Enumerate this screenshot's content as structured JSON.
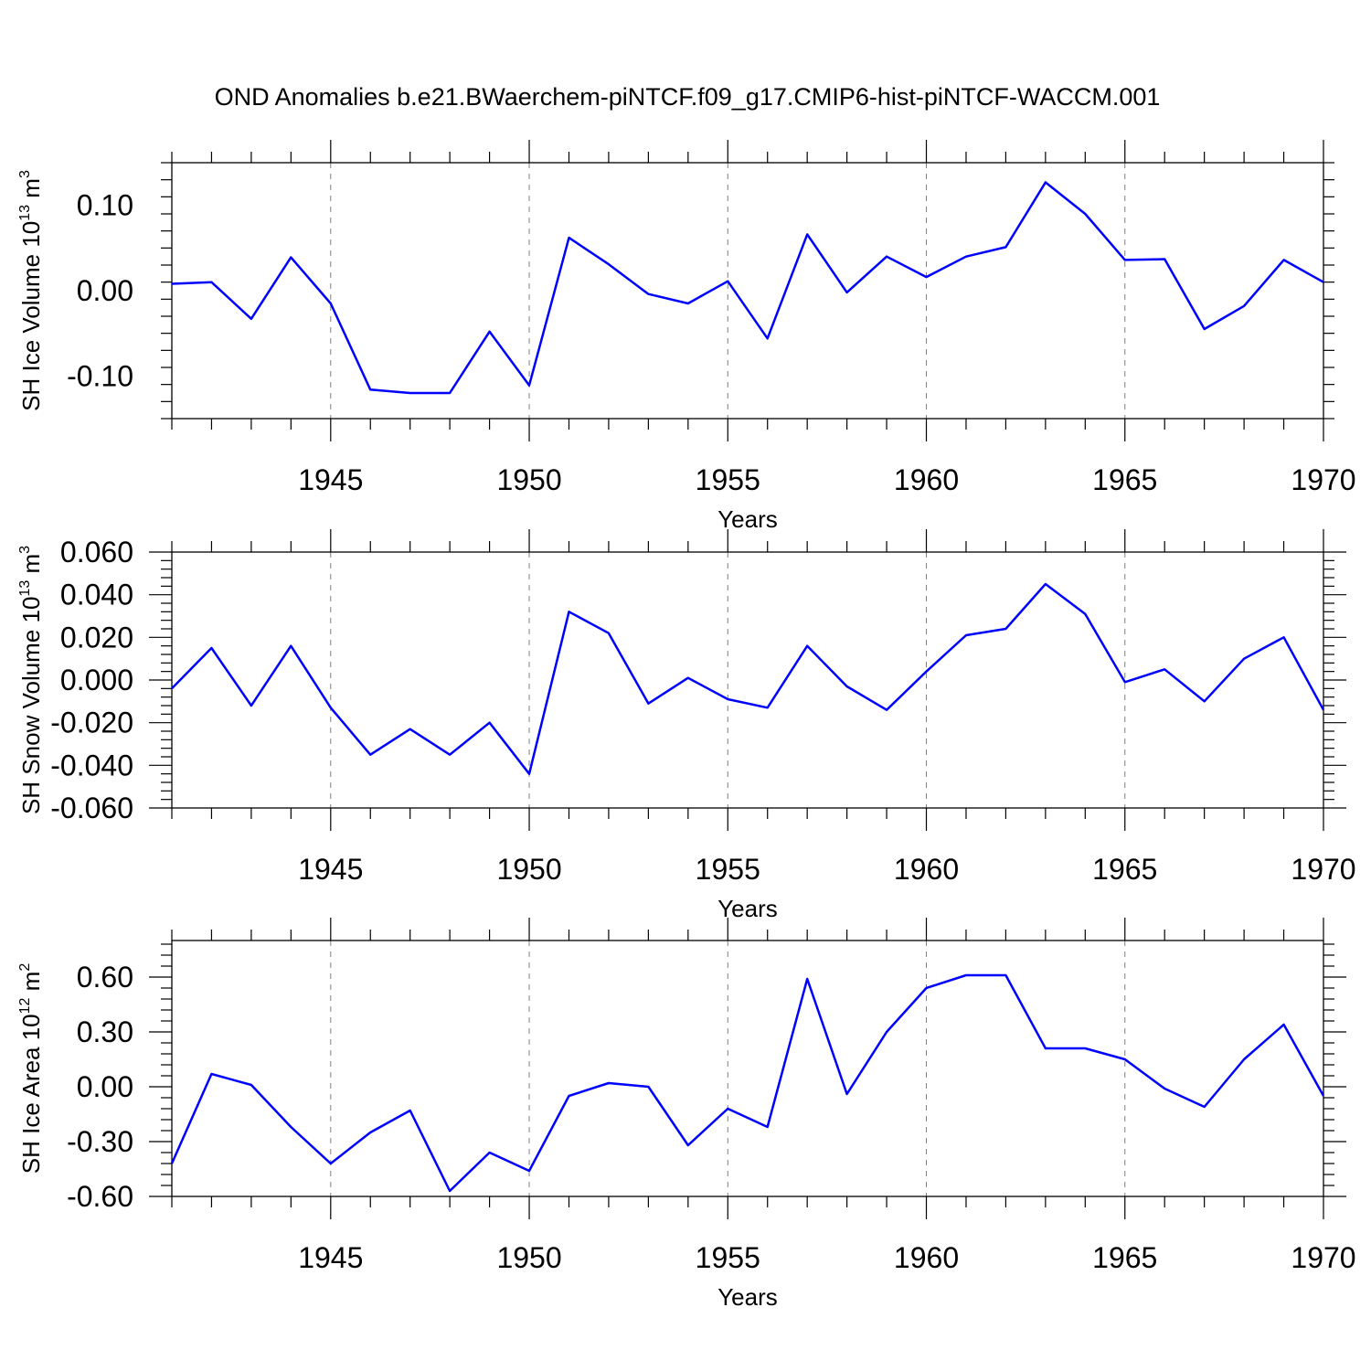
{
  "title": "OND Anomalies b.e21.BWaerchem-piNTCF.f09_g17.CMIP6-hist-piNTCF-WACCM.001",
  "colors": {
    "series": "#0000ff",
    "grid": "#808080",
    "axis": "#000000"
  },
  "chart_data": [
    {
      "type": "line",
      "name": "ice-volume",
      "ylabel": {
        "text": "SH Ice Volume 10",
        "sup1": "13",
        "unit": " m",
        "sup2": "3"
      },
      "xlabel": "Years",
      "xlim": [
        1941,
        1970
      ],
      "ylim": [
        -0.15,
        0.15
      ],
      "xticks": [
        1945,
        1950,
        1955,
        1960,
        1965,
        1970
      ],
      "yticks": [
        -0.1,
        0.0,
        0.1
      ],
      "yticklabels": [
        "-0.10",
        "0.00",
        "0.10"
      ],
      "x": [
        1941,
        1942,
        1943,
        1944,
        1945,
        1946,
        1947,
        1948,
        1949,
        1950,
        1951,
        1952,
        1953,
        1954,
        1955,
        1956,
        1957,
        1958,
        1959,
        1960,
        1961,
        1962,
        1963,
        1964,
        1965,
        1966,
        1967,
        1968,
        1969,
        1970
      ],
      "values": [
        0.008,
        0.01,
        -0.033,
        0.039,
        -0.015,
        -0.116,
        -0.12,
        -0.12,
        -0.048,
        -0.111,
        0.062,
        0.031,
        -0.004,
        -0.015,
        0.011,
        -0.056,
        0.066,
        -0.002,
        0.04,
        0.016,
        0.04,
        0.051,
        0.127,
        0.09,
        0.036,
        0.037,
        -0.045,
        -0.018,
        0.036,
        0.01
      ]
    },
    {
      "type": "line",
      "name": "snow-volume",
      "ylabel": {
        "text": "SH Snow Volume 10",
        "sup1": "13",
        "unit": " m",
        "sup2": "3"
      },
      "xlabel": "Years",
      "xlim": [
        1941,
        1970
      ],
      "ylim": [
        -0.06,
        0.06
      ],
      "xticks": [
        1945,
        1950,
        1955,
        1960,
        1965,
        1970
      ],
      "yticks": [
        -0.06,
        -0.04,
        -0.02,
        0.0,
        0.02,
        0.04,
        0.06
      ],
      "yticklabels": [
        "-0.060",
        "-0.040",
        "-0.020",
        "0.000",
        "0.020",
        "0.040",
        "0.060"
      ],
      "x": [
        1941,
        1942,
        1943,
        1944,
        1945,
        1946,
        1947,
        1948,
        1949,
        1950,
        1951,
        1952,
        1953,
        1954,
        1955,
        1956,
        1957,
        1958,
        1959,
        1960,
        1961,
        1962,
        1963,
        1964,
        1965,
        1966,
        1967,
        1968,
        1969,
        1970
      ],
      "values": [
        -0.004,
        0.015,
        -0.012,
        0.016,
        -0.013,
        -0.035,
        -0.023,
        -0.035,
        -0.02,
        -0.044,
        0.032,
        0.022,
        -0.011,
        0.001,
        -0.009,
        -0.013,
        0.016,
        -0.003,
        -0.014,
        0.004,
        0.021,
        0.024,
        0.045,
        0.031,
        -0.001,
        0.005,
        -0.01,
        0.01,
        0.02,
        -0.014
      ]
    },
    {
      "type": "line",
      "name": "ice-area",
      "ylabel": {
        "text": "SH Ice Area 10",
        "sup1": "12",
        "unit": " m",
        "sup2": "2"
      },
      "xlabel": "Years",
      "xlim": [
        1941,
        1970
      ],
      "ylim": [
        -0.6,
        0.8
      ],
      "xticks": [
        1945,
        1950,
        1955,
        1960,
        1965,
        1970
      ],
      "yticks": [
        -0.6,
        -0.3,
        0.0,
        0.3,
        0.6
      ],
      "yticklabels": [
        "-0.60",
        "-0.30",
        "0.00",
        "0.30",
        "0.60"
      ],
      "x": [
        1941,
        1942,
        1943,
        1944,
        1945,
        1946,
        1947,
        1948,
        1949,
        1950,
        1951,
        1952,
        1953,
        1954,
        1955,
        1956,
        1957,
        1958,
        1959,
        1960,
        1961,
        1962,
        1963,
        1964,
        1965,
        1966,
        1967,
        1968,
        1969,
        1970
      ],
      "values": [
        -0.42,
        0.07,
        0.01,
        -0.22,
        -0.42,
        -0.25,
        -0.13,
        -0.57,
        -0.36,
        -0.46,
        -0.05,
        0.02,
        0.0,
        -0.32,
        -0.12,
        -0.22,
        0.59,
        -0.04,
        0.3,
        0.54,
        0.61,
        0.61,
        0.21,
        0.21,
        0.15,
        -0.01,
        -0.11,
        0.15,
        0.34,
        -0.05
      ]
    }
  ]
}
